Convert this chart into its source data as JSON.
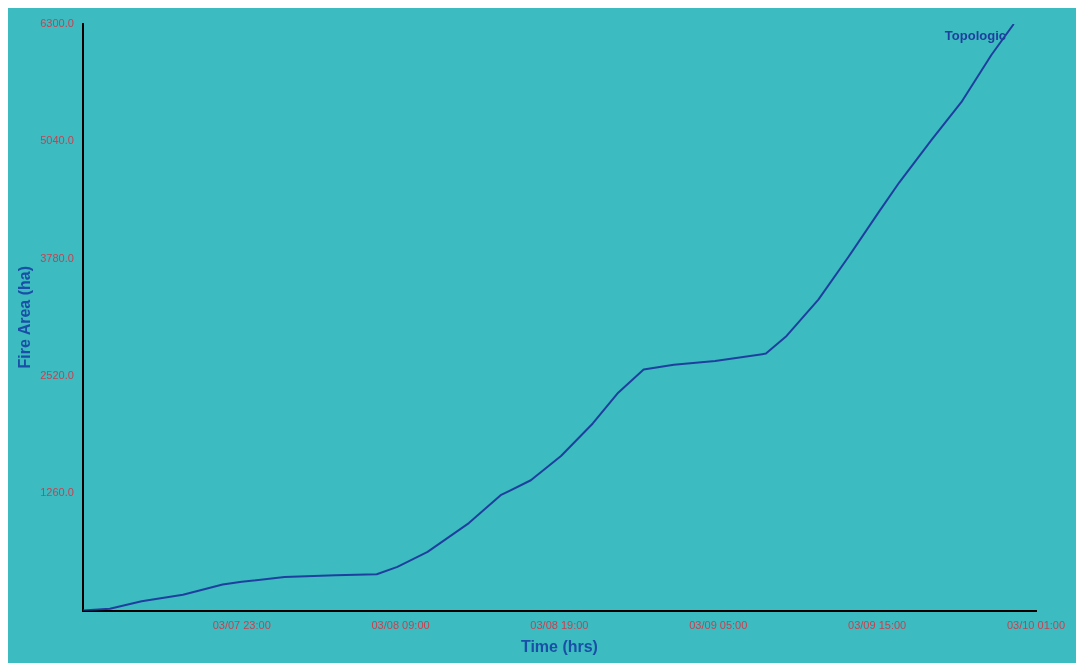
{
  "chart_data": {
    "type": "line",
    "xlabel": "Time (hrs)",
    "ylabel": "Fire Area (ha)",
    "xlim": [
      "--03-07T13:00",
      "--03-10T01:00"
    ],
    "xticks": [
      {
        "value": "--03-07T23:00",
        "label": "03/07 23:00"
      },
      {
        "value": "--03-08T09:00",
        "label": "03/08 09:00"
      },
      {
        "value": "--03-08T19:00",
        "label": "03/08 19:00"
      },
      {
        "value": "--03-09T05:00",
        "label": "03/09 05:00"
      },
      {
        "value": "--03-09T15:00",
        "label": "03/09 15:00"
      },
      {
        "value": "--03-10T01:00",
        "label": "03/10 01:00"
      }
    ],
    "ylim": [
      0,
      6300
    ],
    "yticks": [
      {
        "value": 1260,
        "label": "1260.0"
      },
      {
        "value": 2520,
        "label": "2520.0"
      },
      {
        "value": 3780,
        "label": "3780.0"
      },
      {
        "value": 5040,
        "label": "5040.0"
      },
      {
        "value": 6300,
        "label": "6300.0"
      }
    ],
    "grid": false,
    "legend": "top right",
    "marker": "none",
    "line_style": "solid",
    "series": [
      {
        "name": "Topologic",
        "color": "#1f3f9f",
        "x": [
          "--03-07T13:00",
          "--03-07T14:42",
          "--03-07T16:42",
          "--03-07T19:18",
          "--03-07T21:48",
          "--03-07T23:00",
          "--03-08T01:42",
          "--03-08T04:54",
          "--03-08T07:30",
          "--03-08T08:48",
          "--03-08T10:42",
          "--03-08T13:18",
          "--03-08T15:18",
          "--03-08T17:12",
          "--03-08T19:06",
          "--03-08T21:06",
          "--03-08T22:42",
          "--03-09T00:18",
          "--03-09T02:12",
          "--03-09T04:48",
          "--03-09T08:00",
          "--03-09T09:18",
          "--03-09T11:18",
          "--03-09T13:12",
          "--03-09T15:06",
          "--03-09T16:24",
          "--03-09T18:24",
          "--03-09T20:18",
          "--03-09T22:12",
          "--03-09T23:36"
        ],
        "values": [
          0,
          20,
          100,
          170,
          280,
          310,
          360,
          380,
          390,
          470,
          630,
          940,
          1240,
          1400,
          1660,
          2010,
          2340,
          2590,
          2640,
          2680,
          2760,
          2950,
          3340,
          3800,
          4280,
          4600,
          5050,
          5460,
          5970,
          6300
        ]
      }
    ]
  }
}
